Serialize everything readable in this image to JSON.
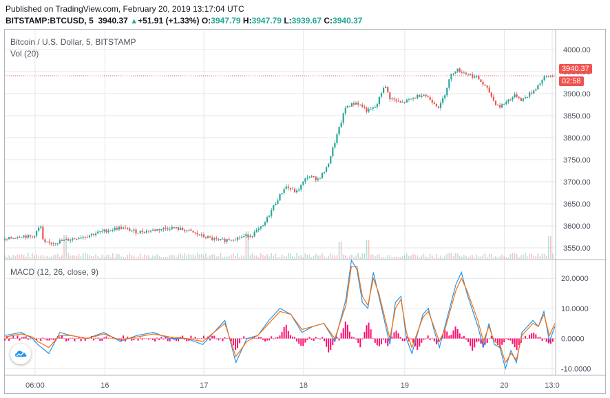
{
  "header": {
    "published": "Published on TradingView.com, February 20, 2019 13:17:04 UTC",
    "symbol": "BITSTAMP:BTCUSD, 5",
    "price": "3940.37",
    "change": "+51.91 (+1.33%)",
    "o_label": "O:",
    "o_value": "3947.79",
    "h_label": "H:",
    "h_value": "3947.79",
    "l_label": "L:",
    "l_value": "3939.67",
    "c_label": "C:",
    "c_value": "3940.37"
  },
  "price_pane": {
    "title": "Bitcoin / U.S. Dollar, 5, BITSTAMP",
    "vol_label": "Vol (20)",
    "last_price": "3940.37",
    "countdown": "02:58"
  },
  "macd_pane": {
    "title": "MACD (12, 26, close, 9)"
  },
  "colors": {
    "up": "#26a69a",
    "down": "#ef5350",
    "macd": "#2196f3",
    "signal": "#ff6d00",
    "histogram": "#ff0d6e",
    "grid": "#e6e6e6",
    "axis_text": "#4c525e"
  },
  "icons": {
    "logo": "tradingview-cloud-icon"
  },
  "chart_data": [
    {
      "type": "candlestick",
      "title": "Bitcoin / U.S. Dollar, 5, BITSTAMP",
      "y_ticks": [
        "4000.00",
        "3950.00",
        "3900.00",
        "3850.00",
        "3800.00",
        "3750.00",
        "3700.00",
        "3650.00",
        "3600.00",
        "3550.00"
      ],
      "x_ticks": [
        "06:00",
        "16",
        "17",
        "18",
        "19",
        "20",
        "13:0"
      ],
      "ylim": [
        3525,
        4045
      ],
      "last_price": 3940.37,
      "close_path": [
        [
          0,
          3568
        ],
        [
          3,
          3578
        ],
        [
          5,
          3574
        ],
        [
          6.5,
          3600
        ],
        [
          7,
          3560
        ],
        [
          9,
          3562
        ],
        [
          12,
          3570
        ],
        [
          15,
          3578
        ],
        [
          18,
          3588
        ],
        [
          21,
          3596
        ],
        [
          24,
          3586
        ],
        [
          27,
          3590
        ],
        [
          30,
          3596
        ],
        [
          33,
          3590
        ],
        [
          36,
          3576
        ],
        [
          39,
          3566
        ],
        [
          42,
          3572
        ],
        [
          45,
          3580
        ],
        [
          47,
          3600
        ],
        [
          49,
          3648
        ],
        [
          51,
          3690
        ],
        [
          53,
          3676
        ],
        [
          55,
          3712
        ],
        [
          57,
          3706
        ],
        [
          58.5,
          3730
        ],
        [
          60,
          3790
        ],
        [
          62,
          3870
        ],
        [
          64,
          3880
        ],
        [
          66,
          3860
        ],
        [
          67.5,
          3870
        ],
        [
          69,
          3920
        ],
        [
          70,
          3890
        ],
        [
          72,
          3878
        ],
        [
          74,
          3888
        ],
        [
          76,
          3900
        ],
        [
          78,
          3880
        ],
        [
          79,
          3868
        ],
        [
          80,
          3900
        ],
        [
          81,
          3940
        ],
        [
          82,
          3955
        ],
        [
          84,
          3945
        ],
        [
          86,
          3935
        ],
        [
          88,
          3905
        ],
        [
          89,
          3880
        ],
        [
          90,
          3870
        ],
        [
          92,
          3890
        ],
        [
          93,
          3896
        ],
        [
          94,
          3885
        ],
        [
          96,
          3905
        ],
        [
          98,
          3935
        ],
        [
          99,
          3940
        ],
        [
          100,
          3940
        ]
      ],
      "volume_spikes": [
        [
          11,
          35
        ],
        [
          44,
          40
        ],
        [
          61,
          25
        ],
        [
          66,
          28
        ],
        [
          99,
          33
        ]
      ]
    },
    {
      "type": "line",
      "title": "MACD (12, 26, close, 9)",
      "y_ticks": [
        "20.0000",
        "10.0000",
        "0.0000",
        "-10.0000"
      ],
      "ylim": [
        -12,
        26
      ],
      "series": [
        {
          "name": "",
          "role": "macd",
          "x": [
            0,
            3,
            5,
            6,
            8,
            10,
            12,
            15,
            18,
            21,
            24,
            27,
            30,
            33,
            36,
            40,
            42,
            44,
            46,
            48,
            50,
            52,
            54,
            56,
            58,
            60,
            62,
            63,
            64,
            65,
            66,
            67,
            68,
            70,
            71,
            72,
            73,
            74,
            76,
            77,
            78,
            79,
            80,
            82,
            83,
            84,
            86,
            87,
            88,
            89,
            90,
            91,
            92,
            93,
            94,
            96,
            97,
            98,
            99,
            100
          ],
          "y": [
            1,
            2,
            0,
            -2,
            -5,
            2,
            1,
            0,
            2,
            -1,
            1,
            2,
            0,
            0,
            -2,
            6,
            -8,
            0,
            1,
            6,
            10,
            8,
            2,
            4,
            5,
            -1,
            13,
            26,
            23,
            12,
            10,
            22,
            14,
            -2,
            12,
            14,
            0,
            -5,
            8,
            10,
            3,
            -3,
            4,
            18,
            22,
            15,
            4,
            -3,
            5,
            -2,
            -3,
            -10,
            -4,
            -8,
            2,
            6,
            4,
            9,
            -1,
            4
          ]
        },
        {
          "name": "",
          "role": "signal",
          "x": [
            0,
            3,
            5,
            6,
            8,
            10,
            12,
            15,
            18,
            21,
            24,
            27,
            30,
            33,
            36,
            40,
            42,
            44,
            46,
            48,
            50,
            52,
            54,
            56,
            58,
            60,
            62,
            63,
            64,
            65,
            66,
            67,
            68,
            70,
            71,
            72,
            73,
            74,
            76,
            77,
            78,
            79,
            80,
            82,
            83,
            84,
            86,
            87,
            88,
            89,
            90,
            91,
            92,
            93,
            94,
            96,
            97,
            98,
            99,
            100
          ],
          "y": [
            0.5,
            1.5,
            0.5,
            -1,
            -3,
            1,
            1,
            0,
            1.5,
            -0.5,
            0.5,
            1.5,
            0.5,
            0,
            -1,
            5,
            -6,
            -1,
            1,
            5,
            9,
            8,
            3,
            4,
            5,
            0,
            11,
            24,
            24,
            14,
            11,
            20,
            15,
            0,
            10,
            13,
            2,
            -3,
            7,
            9,
            4,
            -1,
            3,
            16,
            20,
            16,
            6,
            -1,
            4,
            -1,
            -2,
            -8,
            -5,
            -7,
            1,
            5,
            4,
            8,
            1,
            5
          ]
        }
      ],
      "histogram_peaks": [
        [
          42,
          -4
        ],
        [
          51,
          5
        ],
        [
          54,
          -3
        ],
        [
          59,
          -5
        ],
        [
          62,
          6
        ],
        [
          65,
          -4
        ],
        [
          66,
          6
        ],
        [
          68,
          -3
        ],
        [
          70,
          -4
        ],
        [
          71,
          3
        ],
        [
          75,
          -4
        ],
        [
          79,
          -4
        ],
        [
          80,
          3
        ],
        [
          82,
          4
        ],
        [
          85,
          -4
        ],
        [
          87,
          -3
        ],
        [
          90,
          -3
        ],
        [
          93,
          -4
        ],
        [
          96,
          2
        ],
        [
          99,
          -2
        ]
      ]
    }
  ]
}
